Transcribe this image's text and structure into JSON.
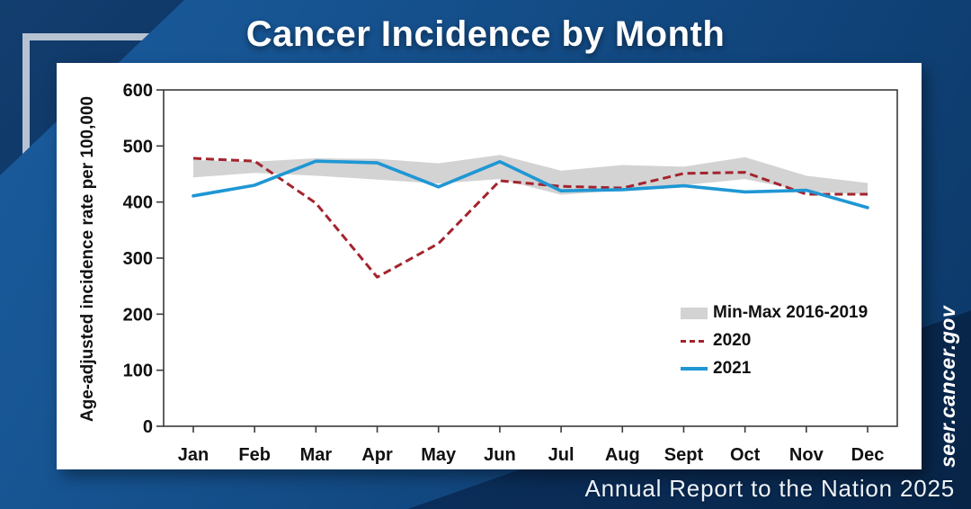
{
  "header": {
    "title": "Cancer Incidence by Month"
  },
  "footer": {
    "text": "Annual Report to the Nation 2025"
  },
  "watermark": {
    "text": "seer.cancer.gov"
  },
  "colors": {
    "background_blue": "#15508c",
    "corner_navy": "#0a2c56",
    "bracket_silver": "#b7c3d2",
    "card_white": "#ffffff",
    "band_gray": "#d3d3d3",
    "line_2020_red": "#a3242e",
    "line_2021_blue": "#1f97d4",
    "axis_ink": "#111111"
  },
  "chart_data": {
    "type": "line",
    "title": "Cancer Incidence by Month",
    "xlabel": "",
    "ylabel": "Age-adjusted incidence rate per 100,000",
    "ylim": [
      0,
      600
    ],
    "yticks": [
      0,
      100,
      200,
      300,
      400,
      500,
      600
    ],
    "grid": false,
    "legend_position": "inside-right",
    "categories": [
      "Jan",
      "Feb",
      "Mar",
      "Apr",
      "May",
      "Jun",
      "Jul",
      "Aug",
      "Sept",
      "Oct",
      "Nov",
      "Dec"
    ],
    "series": [
      {
        "name": "Min-Max 2016-2019",
        "type": "band",
        "color": "#d3d3d3",
        "max": [
          475,
          472,
          478,
          477,
          469,
          484,
          456,
          466,
          463,
          480,
          447,
          434
        ],
        "min": [
          444,
          452,
          447,
          440,
          433,
          441,
          413,
          421,
          430,
          441,
          419,
          414
        ]
      },
      {
        "name": "2020",
        "type": "dashed-line",
        "color": "#a3242e",
        "values": [
          478,
          473,
          398,
          266,
          326,
          438,
          428,
          425,
          451,
          453,
          414,
          414
        ]
      },
      {
        "name": "2021",
        "type": "solid-line",
        "color": "#1f97d4",
        "values": [
          411,
          430,
          473,
          470,
          427,
          472,
          420,
          422,
          429,
          418,
          421,
          390
        ]
      }
    ]
  }
}
